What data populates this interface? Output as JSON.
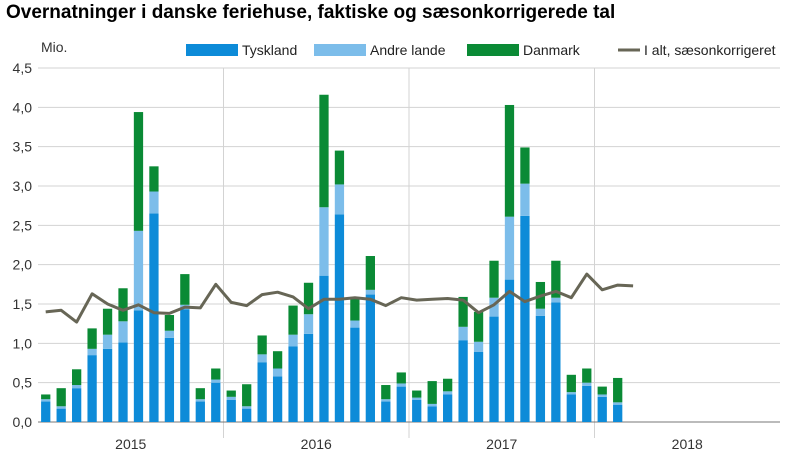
{
  "chart_data": {
    "type": "bar",
    "title": "Overnatninger i danske feriehuse, faktiske og sæsonkorrigerede tal",
    "ylabel": "Mio.",
    "xlabel": "",
    "ylim": [
      0,
      4.5
    ],
    "yticks": [
      "0,0",
      "0,5",
      "1,0",
      "1,5",
      "2,0",
      "2,5",
      "3,0",
      "3,5",
      "4,0",
      "4,5"
    ],
    "year_labels": [
      "2015",
      "2016",
      "2017",
      "2018"
    ],
    "grid": true,
    "legend_position": "top",
    "stacked": true,
    "categories": [
      "2015-01",
      "2015-02",
      "2015-03",
      "2015-04",
      "2015-05",
      "2015-06",
      "2015-07",
      "2015-08",
      "2015-09",
      "2015-10",
      "2015-11",
      "2015-12",
      "2016-01",
      "2016-02",
      "2016-03",
      "2016-04",
      "2016-05",
      "2016-06",
      "2016-07",
      "2016-08",
      "2016-09",
      "2016-10",
      "2016-11",
      "2016-12",
      "2017-01",
      "2017-02",
      "2017-03",
      "2017-04",
      "2017-05",
      "2017-06",
      "2017-07",
      "2017-08",
      "2017-09",
      "2017-10",
      "2017-11",
      "2017-12",
      "2018-01",
      "2018-02",
      "2018-03",
      "2018-04",
      "2018-05",
      "2018-06",
      "2018-07",
      "2018-08",
      "2018-09",
      "2018-10",
      "2018-11",
      "2018-12"
    ],
    "series": [
      {
        "name": "Tyskland",
        "kind": "bar",
        "color": "#0d8bd8",
        "values": [
          0.26,
          0.17,
          0.43,
          0.85,
          0.93,
          1.01,
          1.42,
          2.65,
          1.07,
          1.43,
          0.26,
          0.5,
          0.28,
          0.17,
          0.76,
          0.58,
          0.96,
          1.12,
          1.86,
          2.64,
          1.2,
          1.62,
          0.26,
          0.45,
          0.28,
          0.2,
          0.35,
          1.04,
          0.89,
          1.34,
          1.81,
          2.62,
          1.35,
          1.52,
          0.35,
          0.46,
          0.32,
          0.22,
          null,
          null,
          null,
          null,
          null,
          null,
          null,
          null,
          null,
          null
        ]
      },
      {
        "name": "Andre lande",
        "kind": "bar",
        "color": "#7cbdea",
        "values": [
          0.03,
          0.03,
          0.04,
          0.08,
          0.18,
          0.27,
          1.01,
          0.28,
          0.09,
          0.06,
          0.03,
          0.04,
          0.04,
          0.03,
          0.1,
          0.1,
          0.15,
          0.25,
          0.87,
          0.38,
          0.09,
          0.06,
          0.03,
          0.04,
          0.03,
          0.03,
          0.04,
          0.17,
          0.13,
          0.24,
          0.8,
          0.41,
          0.09,
          0.06,
          0.03,
          0.04,
          0.03,
          0.03,
          null,
          null,
          null,
          null,
          null,
          null,
          null,
          null,
          null,
          null
        ]
      },
      {
        "name": "Danmark",
        "kind": "bar",
        "color": "#0a8a35",
        "values": [
          0.06,
          0.23,
          0.2,
          0.26,
          0.33,
          0.42,
          1.51,
          0.32,
          0.2,
          0.39,
          0.14,
          0.14,
          0.08,
          0.28,
          0.24,
          0.22,
          0.37,
          0.4,
          1.43,
          0.43,
          0.3,
          0.43,
          0.18,
          0.14,
          0.09,
          0.29,
          0.16,
          0.38,
          0.38,
          0.47,
          1.42,
          0.46,
          0.34,
          0.47,
          0.22,
          0.18,
          0.1,
          0.31,
          null,
          null,
          null,
          null,
          null,
          null,
          null,
          null,
          null,
          null
        ]
      },
      {
        "name": "I alt, sæsonkorrigeret",
        "kind": "line",
        "color": "#676656",
        "values": [
          1.4,
          1.42,
          1.27,
          1.63,
          1.5,
          1.42,
          1.49,
          1.39,
          1.38,
          1.46,
          1.45,
          1.75,
          1.52,
          1.48,
          1.62,
          1.65,
          1.59,
          1.44,
          1.56,
          1.56,
          1.58,
          1.56,
          1.48,
          1.58,
          1.55,
          1.56,
          1.57,
          1.55,
          1.39,
          1.49,
          1.66,
          1.53,
          1.6,
          1.66,
          1.58,
          1.88,
          1.68,
          1.74,
          1.73,
          null,
          null,
          null,
          null,
          null,
          null,
          null,
          null,
          null
        ]
      }
    ]
  }
}
